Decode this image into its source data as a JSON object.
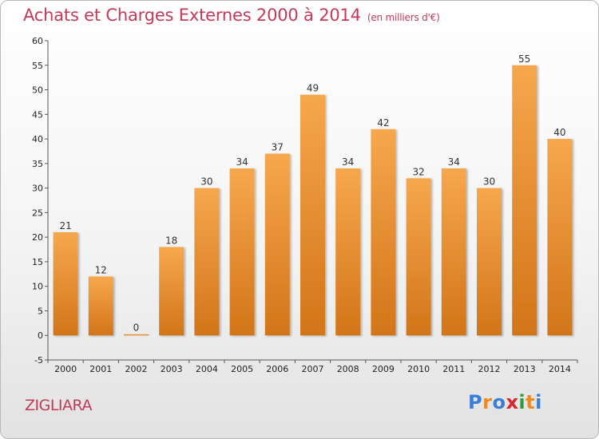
{
  "title": "Achats et Charges Externes 2000 à 2014",
  "unit_note": "(en milliers d'€)",
  "commune": "ZIGLIARA",
  "logo": {
    "letters": [
      "P",
      "r",
      "o",
      "x",
      "i",
      "t",
      "i"
    ],
    "colors": [
      "#3a7fd5",
      "#f08a1c",
      "#3a7fd5",
      "#d9262a",
      "#2f9e3a",
      "#f08a1c",
      "#3a7fd5"
    ]
  },
  "colors": {
    "bar_light": "#f7a74d",
    "bar_dark": "#d27519",
    "title": "#c23a5a"
  },
  "chart_data": {
    "type": "bar",
    "title": "Achats et Charges Externes 2000 à 2014",
    "subtitle": "(en milliers d'€)",
    "categories": [
      "2000",
      "2001",
      "2002",
      "2003",
      "2004",
      "2005",
      "2006",
      "2007",
      "2008",
      "2009",
      "2010",
      "2011",
      "2012",
      "2013",
      "2014"
    ],
    "values": [
      21,
      12,
      0,
      18,
      30,
      34,
      37,
      49,
      34,
      42,
      32,
      34,
      30,
      55,
      40
    ],
    "ylim": [
      -5,
      60
    ],
    "yticks": [
      -5,
      0,
      5,
      10,
      15,
      20,
      25,
      30,
      35,
      40,
      45,
      50,
      55,
      60
    ],
    "grid": false,
    "data_labels": true
  }
}
